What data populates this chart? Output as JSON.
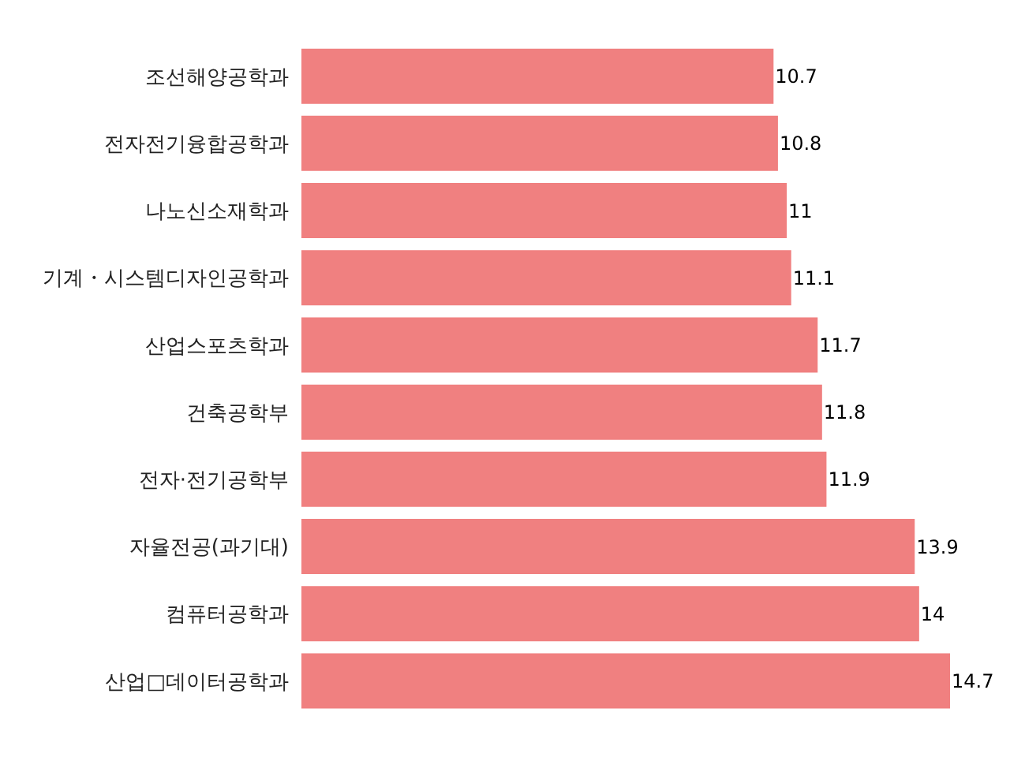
{
  "chart_data": {
    "type": "bar",
    "orientation": "horizontal",
    "categories": [
      "조선해양공학과",
      "전자전기융합공학과",
      "나노신소재학과",
      "기계・시스템디자인공학과",
      "산업스포츠학과",
      "건축공학부",
      "전자·전기공학부",
      "자율전공(과기대)",
      "컴퓨터공학과",
      "산업□데이터공학과"
    ],
    "values": [
      10.7,
      10.8,
      11,
      11.1,
      11.7,
      11.8,
      11.9,
      13.9,
      14,
      14.7
    ],
    "color": "#f08080",
    "data_labels": true
  }
}
